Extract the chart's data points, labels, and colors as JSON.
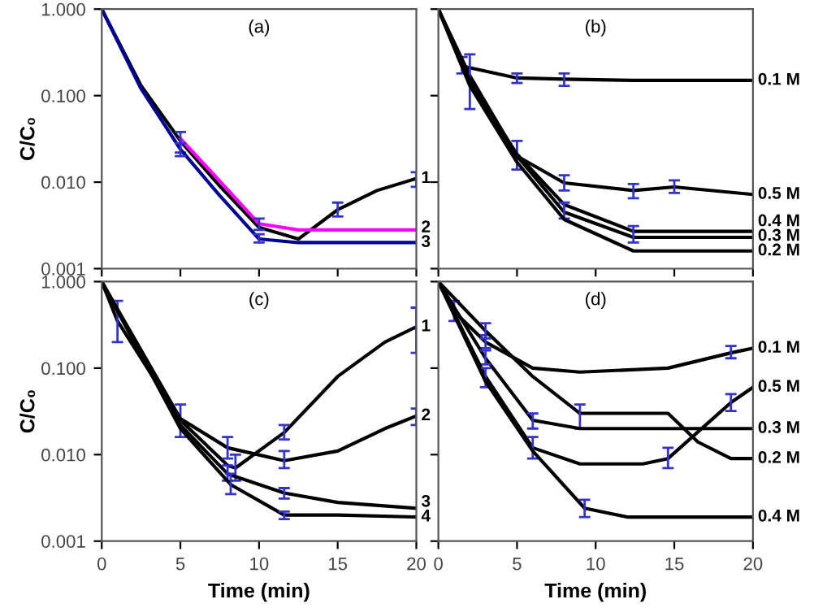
{
  "chart_data": [
    {
      "type": "line",
      "title": "(a)",
      "ylabel": "C/C₀",
      "log": "y",
      "xlim": [
        0,
        20
      ],
      "xticks": [
        0,
        5,
        10,
        15,
        20
      ],
      "ylim": [
        0.001,
        1
      ],
      "yticks": [
        {
          "value": 1,
          "label": "1.000"
        },
        {
          "value": 0.1,
          "label": "0.100"
        },
        {
          "value": 0.01,
          "label": "0.010"
        },
        {
          "value": 0.001,
          "label": "0.001"
        }
      ],
      "tick_labels": "y",
      "grid": false,
      "legend": false,
      "marker": "none",
      "line_style": "solid",
      "series": [
        {
          "name": "1",
          "color": "#000000",
          "x": [
            0,
            2.5,
            5,
            7.5,
            10,
            12.5,
            15,
            17.5,
            20
          ],
          "values": [
            1,
            0.13,
            0.03,
            0.009,
            0.003,
            0.0022,
            0.0048,
            0.008,
            0.011
          ],
          "errors": [
            null,
            null,
            null,
            null,
            null,
            null,
            [
              0.004,
              0.0058
            ],
            null,
            [
              0.0088,
              0.013
            ]
          ]
        },
        {
          "name": "2",
          "color": "#ff00ff",
          "x": [
            5,
            10,
            12.5,
            15,
            20
          ],
          "values": [
            0.032,
            0.0033,
            0.0028,
            0.0028,
            0.0028
          ],
          "errors": [
            [
              0.022,
              0.038
            ],
            [
              0.0028,
              0.0038
            ],
            null,
            null,
            null
          ]
        },
        {
          "name": "3",
          "color": "#000099",
          "x": [
            0,
            2.5,
            5,
            7.5,
            10,
            12.5,
            15,
            20
          ],
          "values": [
            1,
            0.12,
            0.024,
            0.007,
            0.0022,
            0.002,
            0.002,
            0.002
          ],
          "errors": [
            null,
            null,
            [
              0.02,
              0.028
            ],
            null,
            [
              0.002,
              0.0025
            ],
            null,
            null,
            null
          ]
        }
      ]
    },
    {
      "type": "line",
      "title": "(b)",
      "log": "y",
      "xlim": [
        0,
        20
      ],
      "xticks": [
        0,
        5,
        10,
        15,
        20
      ],
      "ylim": [
        0.001,
        1
      ],
      "yticks": [
        {
          "value": 1,
          "label": null
        },
        {
          "value": 0.1,
          "label": null
        },
        {
          "value": 0.01,
          "label": null
        },
        {
          "value": 0.001,
          "label": null
        }
      ],
      "tick_labels": false,
      "grid": false,
      "legend": false,
      "marker": "none",
      "line_style": "solid",
      "series": [
        {
          "name": "0.1 M",
          "color": "#000000",
          "x": [
            0,
            1.5,
            5,
            8,
            12.4,
            15,
            20
          ],
          "values": [
            1,
            0.22,
            0.16,
            0.155,
            0.15,
            0.15,
            0.15
          ],
          "errors": [
            null,
            [
              0.18,
              0.28
            ],
            [
              0.14,
              0.18
            ],
            [
              0.13,
              0.18
            ],
            null,
            null,
            null
          ]
        },
        {
          "name": "0.5 M",
          "color": "#000000",
          "x": [
            0,
            2,
            5,
            8,
            12.4,
            15,
            20
          ],
          "values": [
            1,
            0.17,
            0.02,
            0.0098,
            0.008,
            0.0088,
            0.0072
          ],
          "errors": [
            null,
            [
              0.07,
              0.3
            ],
            [
              0.014,
              0.03
            ],
            [
              0.008,
              0.012
            ],
            [
              0.0065,
              0.0095
            ],
            [
              0.0075,
              0.0105
            ],
            null
          ]
        },
        {
          "name": "0.4 M",
          "color": "#000000",
          "x": [
            0,
            2,
            5,
            8,
            12.4,
            15,
            20
          ],
          "values": [
            1,
            0.15,
            0.021,
            0.0055,
            0.0027,
            0.0027,
            0.0027
          ],
          "errors": [
            null,
            null,
            null,
            null,
            null,
            null,
            null
          ]
        },
        {
          "name": "0.3 M",
          "color": "#000000",
          "x": [
            0,
            2,
            5,
            8,
            12.4,
            15,
            20
          ],
          "values": [
            1,
            0.14,
            0.02,
            0.0045,
            0.0023,
            0.0023,
            0.0023
          ],
          "errors": [
            null,
            null,
            null,
            [
              0.0038,
              0.0058
            ],
            [
              0.002,
              0.0031
            ],
            null,
            null
          ]
        },
        {
          "name": "0.2 M",
          "color": "#000000",
          "x": [
            0,
            2,
            5,
            8,
            12.4,
            15,
            20
          ],
          "values": [
            1,
            0.13,
            0.017,
            0.0037,
            0.0016,
            0.0016,
            0.0016
          ],
          "errors": [
            null,
            null,
            null,
            null,
            null,
            null,
            null
          ]
        }
      ]
    },
    {
      "type": "line",
      "title": "(c)",
      "xlabel": "Time (min)",
      "ylabel": "C/C₀",
      "log": "y",
      "xlim": [
        0,
        20
      ],
      "xticks": [
        0,
        5,
        10,
        15,
        20
      ],
      "ylim": [
        0.001,
        1
      ],
      "yticks": [
        {
          "value": 1,
          "label": "1.000"
        },
        {
          "value": 0.1,
          "label": "0.100"
        },
        {
          "value": 0.01,
          "label": "0.010"
        },
        {
          "value": 0.001,
          "label": "0.001"
        }
      ],
      "grid": false,
      "legend": false,
      "marker": "none",
      "line_style": "solid",
      "series": [
        {
          "name": "1",
          "color": "#000000",
          "x": [
            0,
            1,
            5,
            8,
            8.5,
            11.6,
            15,
            18,
            20
          ],
          "values": [
            1,
            0.35,
            0.025,
            0.0075,
            0.007,
            0.018,
            0.08,
            0.2,
            0.3
          ],
          "errors": [
            null,
            [
              0.2,
              0.6
            ],
            [
              0.016,
              0.038
            ],
            null,
            [
              0.005,
              0.01
            ],
            [
              0.015,
              0.022
            ],
            null,
            null,
            [
              0.15,
              0.5
            ]
          ]
        },
        {
          "name": "2",
          "color": "#000000",
          "x": [
            0,
            5,
            8,
            11.6,
            15,
            18,
            20
          ],
          "values": [
            1,
            0.026,
            0.012,
            0.0085,
            0.011,
            0.02,
            0.028
          ],
          "errors": [
            null,
            null,
            [
              0.009,
              0.016
            ],
            [
              0.007,
              0.011
            ],
            null,
            null,
            [
              0.022,
              0.034
            ]
          ]
        },
        {
          "name": "3",
          "color": "#000000",
          "x": [
            0,
            5,
            8,
            11.6,
            15,
            20
          ],
          "values": [
            1,
            0.022,
            0.006,
            0.0036,
            0.0028,
            0.0024
          ],
          "errors": [
            null,
            null,
            [
              0.005,
              0.0075
            ],
            [
              0.0031,
              0.0041
            ],
            null,
            null
          ]
        },
        {
          "name": "4",
          "color": "#000000",
          "x": [
            0,
            5,
            8.2,
            11.6,
            15,
            20
          ],
          "values": [
            1,
            0.02,
            0.0045,
            0.002,
            0.002,
            0.0019
          ],
          "errors": [
            null,
            null,
            [
              0.0035,
              0.006
            ],
            [
              0.0018,
              0.0022
            ],
            null,
            null
          ]
        }
      ]
    },
    {
      "type": "line",
      "title": "(d)",
      "xlabel": "Time (min)",
      "log": "y",
      "xlim": [
        0,
        20
      ],
      "xticks": [
        0,
        5,
        10,
        15,
        20
      ],
      "ylim": [
        0.001,
        1
      ],
      "yticks": [
        {
          "value": 1,
          "label": null
        },
        {
          "value": 0.1,
          "label": null
        },
        {
          "value": 0.01,
          "label": null
        },
        {
          "value": 0.001,
          "label": null
        }
      ],
      "tick_labels": "x",
      "grid": false,
      "legend": false,
      "marker": "none",
      "line_style": "solid",
      "series": [
        {
          "name": "0.1 M",
          "color": "#000000",
          "x": [
            0,
            1,
            3,
            6,
            9,
            14.6,
            18.6,
            20
          ],
          "values": [
            1,
            0.45,
            0.2,
            0.1,
            0.09,
            0.1,
            0.15,
            0.17
          ],
          "errors": [
            null,
            [
              0.35,
              0.6
            ],
            [
              0.17,
              0.24
            ],
            null,
            null,
            null,
            [
              0.13,
              0.18
            ],
            null
          ]
        },
        {
          "name": "0.2 M",
          "color": "#000000",
          "x": [
            0,
            3,
            6,
            9,
            14.6,
            16.5,
            18.6,
            20
          ],
          "values": [
            1,
            0.27,
            0.08,
            0.03,
            0.03,
            0.014,
            0.009,
            0.009
          ],
          "errors": [
            null,
            [
              0.22,
              0.33
            ],
            null,
            [
              0.02,
              0.038
            ],
            null,
            null,
            null,
            null
          ]
        },
        {
          "name": "0.3 M",
          "color": "#000000",
          "x": [
            0,
            3,
            6,
            9,
            14.6,
            18.6,
            20
          ],
          "values": [
            1,
            0.13,
            0.025,
            0.02,
            0.02,
            0.02,
            0.02
          ],
          "errors": [
            null,
            [
              0.11,
              0.16
            ],
            [
              0.02,
              0.03
            ],
            null,
            null,
            null,
            null
          ]
        },
        {
          "name": "0.5 M",
          "color": "#000000",
          "x": [
            0,
            3,
            6,
            9,
            13,
            14.6,
            18.6,
            20
          ],
          "values": [
            1,
            0.08,
            0.012,
            0.0078,
            0.0078,
            0.009,
            0.04,
            0.06
          ],
          "errors": [
            null,
            [
              0.06,
              0.1
            ],
            [
              0.009,
              0.016
            ],
            null,
            null,
            [
              0.007,
              0.012
            ],
            [
              0.032,
              0.05
            ],
            null
          ]
        },
        {
          "name": "0.4 M",
          "color": "#000000",
          "x": [
            0,
            3,
            6,
            9.3,
            12,
            14.6,
            18.6,
            20
          ],
          "values": [
            1,
            0.07,
            0.011,
            0.0024,
            0.0019,
            0.0019,
            0.0019,
            0.0019
          ],
          "errors": [
            null,
            null,
            null,
            [
              0.0019,
              0.003
            ],
            null,
            null,
            null,
            null
          ]
        }
      ]
    }
  ]
}
